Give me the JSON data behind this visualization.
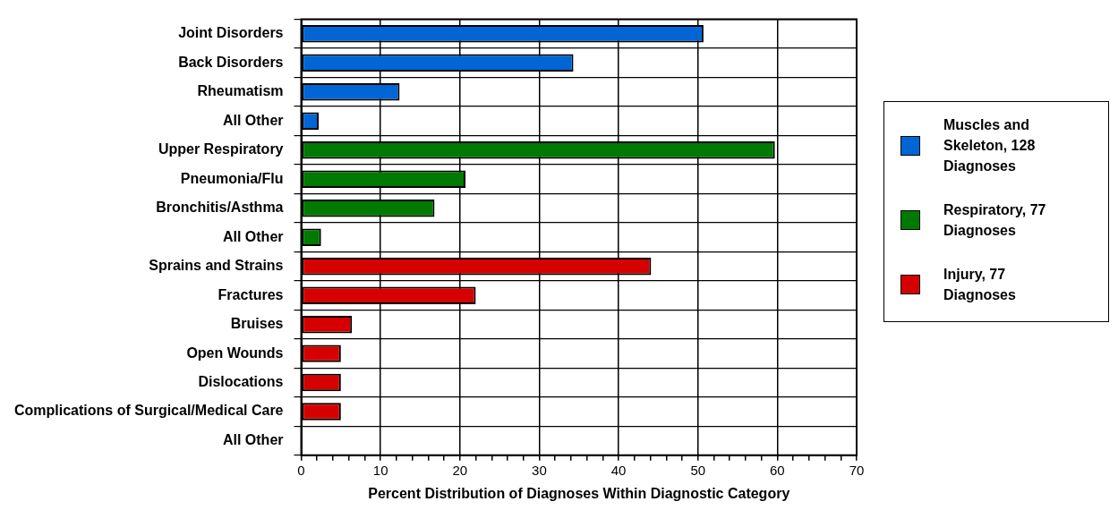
{
  "chart_data": {
    "type": "bar",
    "orientation": "horizontal",
    "xlabel": "Percent Distribution of Diagnoses Within Diagnostic Category",
    "categories": [
      "Joint Disorders",
      "Back Disorders",
      "Rheumatism",
      "All Other",
      "Upper Respiratory",
      "Pneumonia/Flu",
      "Bronchitis/Asthma",
      "All Other",
      "Sprains and Strains",
      "Fractures",
      "Bruises",
      "Open Wounds",
      "Dislocations",
      "Complications of Surgical/Medical Care",
      "All Other"
    ],
    "series": [
      {
        "name": "Muscles and Skeleton, 128 Diagnoses",
        "color": "#0066d6",
        "values": [
          50.7,
          34.3,
          12.4,
          2.2,
          null,
          null,
          null,
          null,
          null,
          null,
          null,
          null,
          null,
          null,
          null
        ]
      },
      {
        "name": "Respiratory, 77 Diagnoses",
        "color": "#007a00",
        "values": [
          null,
          null,
          null,
          null,
          59.7,
          20.7,
          16.8,
          2.5,
          null,
          null,
          null,
          null,
          null,
          null,
          null
        ]
      },
      {
        "name": "Injury, 77 Diagnoses",
        "color": "#d60000",
        "values": [
          null,
          null,
          null,
          null,
          null,
          null,
          null,
          null,
          44.1,
          22.0,
          6.4,
          5.0,
          5.0,
          5.0,
          0
        ]
      }
    ],
    "xlim": [
      0,
      70
    ],
    "xticks": [
      0,
      {
        "value": 2,
        "label": null
      },
      {
        "value": 4,
        "label": null
      },
      {
        "value": 6,
        "label": null
      },
      {
        "value": 8,
        "label": null
      },
      10,
      {
        "value": 12,
        "label": null
      },
      {
        "value": 14,
        "label": null
      },
      {
        "value": 16,
        "label": null
      },
      {
        "value": 18,
        "label": null
      },
      20,
      {
        "value": 22,
        "label": null
      },
      {
        "value": 24,
        "label": null
      },
      {
        "value": 26,
        "label": null
      },
      {
        "value": 28,
        "label": null
      },
      30,
      {
        "value": 32,
        "label": null
      },
      {
        "value": 34,
        "label": null
      },
      {
        "value": 36,
        "label": null
      },
      {
        "value": 38,
        "label": null
      },
      40,
      {
        "value": 42,
        "label": null
      },
      {
        "value": 44,
        "label": null
      },
      {
        "value": 46,
        "label": null
      },
      {
        "value": 48,
        "label": null
      },
      50,
      {
        "value": 52,
        "label": null
      },
      {
        "value": 54,
        "label": null
      },
      {
        "value": 56,
        "label": null
      },
      {
        "value": 58,
        "label": null
      },
      60,
      {
        "value": 62,
        "label": null
      },
      {
        "value": 64,
        "label": null
      },
      {
        "value": 66,
        "label": null
      },
      {
        "value": 68,
        "label": null
      },
      70
    ],
    "grid": true,
    "legend": "right"
  }
}
